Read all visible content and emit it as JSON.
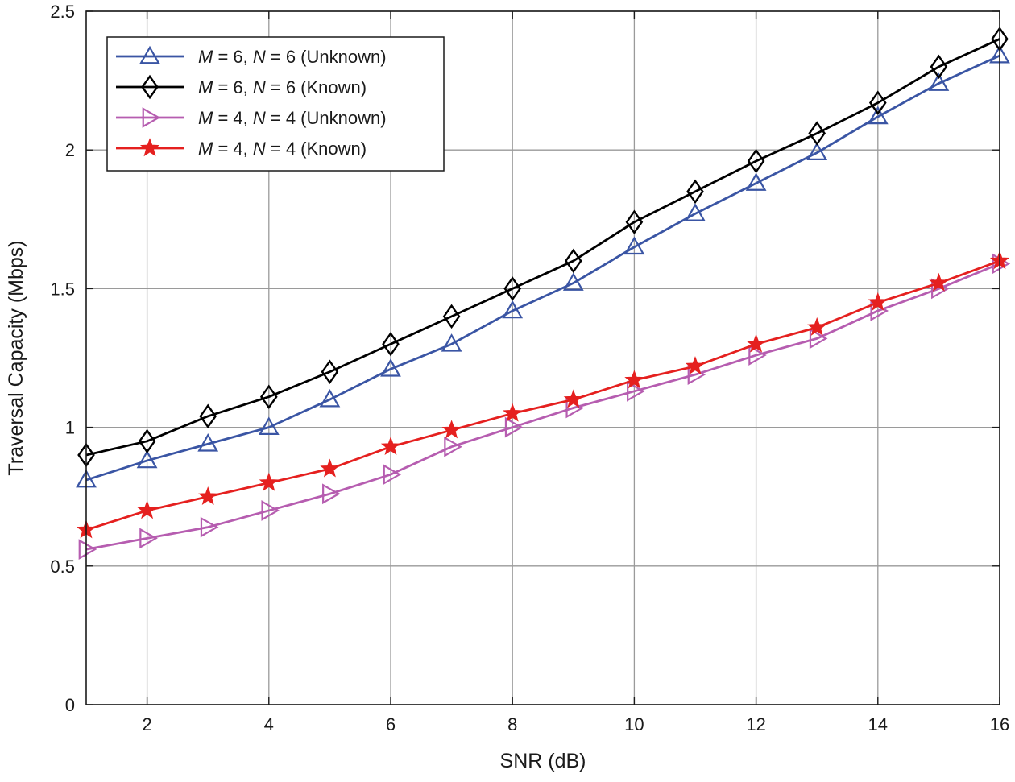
{
  "chart_data": {
    "type": "line",
    "xlabel": "SNR (dB)",
    "ylabel": "Traversal Capacity (Mbps)",
    "xlim": [
      1,
      16
    ],
    "ylim": [
      0,
      2.5
    ],
    "xticks": [
      2,
      4,
      6,
      8,
      10,
      12,
      14,
      16
    ],
    "yticks": [
      0,
      0.5,
      1,
      1.5,
      2,
      2.5
    ],
    "xtick_labels": [
      "2",
      "4",
      "6",
      "8",
      "10",
      "12",
      "14",
      "16"
    ],
    "ytick_labels": [
      "0",
      "0.5",
      "1",
      "1.5",
      "2",
      "2.5"
    ],
    "grid": true,
    "legend_position": "top-left",
    "x": [
      1,
      2,
      3,
      4,
      5,
      6,
      7,
      8,
      9,
      10,
      11,
      12,
      13,
      14,
      15,
      16
    ],
    "series": [
      {
        "name": "M = 6, N = 6 (Unknown)",
        "legend": {
          "m_var": "M",
          "m_val": " = 6, ",
          "n_var": "N",
          "n_val": " = 6 (Unknown)"
        },
        "color": "#3a55a4",
        "marker": "triangle-up",
        "values": [
          0.81,
          0.88,
          0.94,
          1.0,
          1.1,
          1.21,
          1.3,
          1.42,
          1.52,
          1.65,
          1.77,
          1.88,
          1.99,
          2.12,
          2.24,
          2.34
        ]
      },
      {
        "name": "M = 6, N = 6 (Known)",
        "legend": {
          "m_var": "M",
          "m_val": " = 6, ",
          "n_var": "N",
          "n_val": " = 6 (Known)"
        },
        "color": "#000000",
        "marker": "diamond",
        "values": [
          0.9,
          0.95,
          1.04,
          1.11,
          1.2,
          1.3,
          1.4,
          1.5,
          1.6,
          1.74,
          1.85,
          1.96,
          2.06,
          2.17,
          2.3,
          2.4
        ]
      },
      {
        "name": "M = 4, N = 4 (Unknown)",
        "legend": {
          "m_var": "M",
          "m_val": " = 4, ",
          "n_var": "N",
          "n_val": " = 4 (Unknown)"
        },
        "color": "#b65db0",
        "marker": "triangle-right",
        "values": [
          0.56,
          0.6,
          0.64,
          0.7,
          0.76,
          0.83,
          0.93,
          1.0,
          1.07,
          1.13,
          1.19,
          1.26,
          1.32,
          1.42,
          1.5,
          1.59
        ]
      },
      {
        "name": "M = 4, N = 4 (Known)",
        "legend": {
          "m_var": "M",
          "m_val": " = 4, ",
          "n_var": "N",
          "n_val": " = 4 (Known)"
        },
        "color": "#e5201f",
        "marker": "star",
        "values": [
          0.63,
          0.7,
          0.75,
          0.8,
          0.85,
          0.93,
          0.99,
          1.05,
          1.1,
          1.17,
          1.22,
          1.3,
          1.36,
          1.45,
          1.52,
          1.6
        ]
      }
    ]
  }
}
